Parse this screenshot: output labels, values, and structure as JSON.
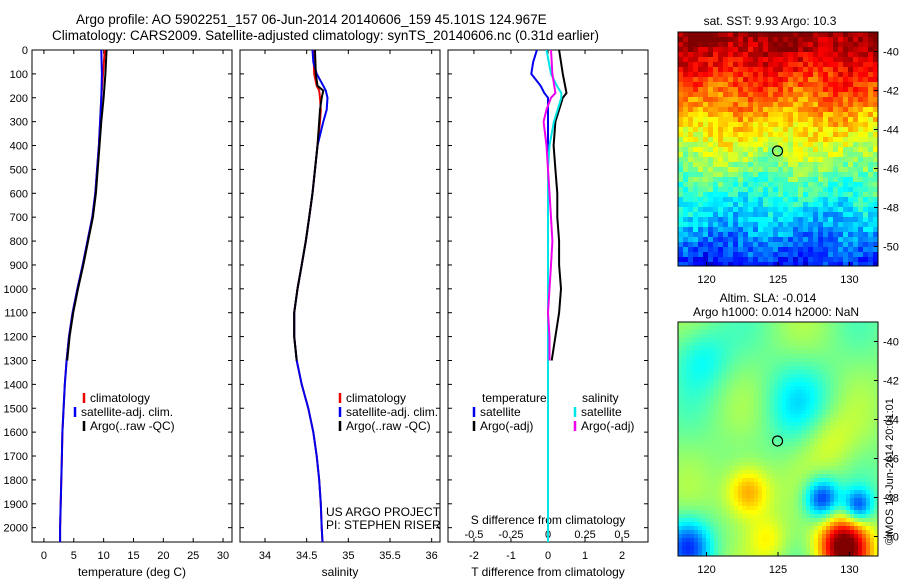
{
  "header": {
    "line1": "Argo profile: AO 5902251_157 06-Jun-2014 20140606_159 45.101S 124.967E",
    "line2": "Climatology: CARS2009. Satellite-adjusted climatology: synTS_20140606.nc (0.31d earlier)"
  },
  "colors": {
    "climatology": "#ee0000",
    "satellite": "#0000ee",
    "argo": "#000000",
    "sat_salinity": "#00e5e5",
    "argo_salinity": "#ee00ee"
  },
  "chart_data": [
    {
      "type": "line",
      "id": "temperature",
      "xlabel": "temperature (deg C)",
      "ylabel": "",
      "xlim": [
        -2,
        31.5
      ],
      "ylim": [
        2060,
        0
      ],
      "xticks": [
        0,
        5,
        10,
        15,
        20,
        25,
        30
      ],
      "yticks": [
        0,
        100,
        200,
        300,
        400,
        500,
        600,
        700,
        800,
        900,
        1000,
        1100,
        1200,
        1300,
        1400,
        1500,
        1600,
        1700,
        1800,
        1900,
        2000
      ],
      "legend": [
        "climatology",
        "satellite-adj. clim.",
        "Argo(..raw -QC)"
      ],
      "series": [
        {
          "name": "climatology",
          "depth": [
            0,
            100,
            200,
            300,
            400,
            500,
            600,
            700,
            800,
            900,
            1000,
            1100,
            1200,
            1300,
            1400,
            1500,
            1600,
            1700,
            1800,
            1900,
            2000,
            2060
          ],
          "values": [
            10.2,
            9.9,
            9.6,
            9.4,
            9.2,
            8.9,
            8.6,
            8.1,
            7.3,
            6.5,
            5.6,
            4.8,
            4.2,
            3.8,
            3.5,
            3.3,
            3.1,
            3.0,
            2.9,
            2.8,
            2.7,
            2.7
          ]
        },
        {
          "name": "satellite",
          "depth": [
            0,
            100,
            200,
            300,
            400,
            500,
            600,
            700,
            800,
            900,
            1000,
            1100,
            1200,
            1300,
            1400,
            1500,
            1600,
            1700,
            1800,
            1900,
            2000,
            2060
          ],
          "values": [
            9.6,
            9.7,
            9.6,
            9.4,
            9.2,
            8.9,
            8.6,
            8.1,
            7.3,
            6.5,
            5.6,
            4.8,
            4.2,
            3.8,
            3.5,
            3.3,
            3.1,
            3.0,
            2.9,
            2.8,
            2.7,
            2.7
          ]
        },
        {
          "name": "argo",
          "depth": [
            0,
            100,
            200,
            300,
            400,
            500,
            600,
            700,
            800,
            900,
            1000,
            1100,
            1200,
            1300
          ],
          "values": [
            10.5,
            10.3,
            10.0,
            9.6,
            9.3,
            9.0,
            8.7,
            8.2,
            7.4,
            6.6,
            5.7,
            4.9,
            4.3,
            3.9
          ]
        }
      ]
    },
    {
      "type": "line",
      "id": "salinity",
      "xlabel": "salinity",
      "xlim": [
        33.7,
        36.1
      ],
      "ylim": [
        2060,
        0
      ],
      "xticks": [
        34,
        34.5,
        35,
        35.5,
        36
      ],
      "legend": [
        "climatology",
        "satellite-adj. clim.",
        "Argo(..raw -QC)"
      ],
      "annotation": [
        "US ARGO PROJECT",
        "PI: STEPHEN RISER"
      ],
      "series": [
        {
          "name": "climatology",
          "depth": [
            0,
            100,
            150,
            170,
            200,
            250,
            300,
            400,
            500,
            600,
            700,
            800,
            900,
            1000,
            1100,
            1200,
            1300,
            1400,
            1500,
            1600,
            1700,
            1800,
            1900,
            2000,
            2060
          ],
          "values": [
            34.58,
            34.59,
            34.62,
            34.65,
            34.66,
            34.67,
            34.66,
            34.63,
            34.6,
            34.57,
            34.53,
            34.49,
            34.44,
            34.39,
            34.35,
            34.35,
            34.38,
            34.44,
            34.52,
            34.58,
            34.62,
            34.65,
            34.67,
            34.68,
            34.69
          ]
        },
        {
          "name": "satellite",
          "depth": [
            0,
            50,
            100,
            150,
            170,
            200,
            250,
            300,
            400,
            500,
            600,
            700,
            800,
            900,
            1000,
            1100,
            1200,
            1300,
            1400,
            1500,
            1600,
            1700,
            1800,
            1900,
            2000,
            2060
          ],
          "values": [
            34.57,
            34.58,
            34.62,
            34.7,
            34.73,
            34.75,
            34.74,
            34.7,
            34.63,
            34.6,
            34.57,
            34.53,
            34.49,
            34.44,
            34.39,
            34.35,
            34.35,
            34.38,
            34.44,
            34.52,
            34.58,
            34.62,
            34.65,
            34.67,
            34.68,
            34.69
          ]
        },
        {
          "name": "argo",
          "depth": [
            0,
            100,
            150,
            170,
            200,
            250,
            300,
            400,
            500,
            600,
            700,
            800,
            900,
            1000,
            1100,
            1200,
            1300
          ],
          "values": [
            34.6,
            34.61,
            34.63,
            34.7,
            34.68,
            34.66,
            34.65,
            34.63,
            34.6,
            34.57,
            34.53,
            34.49,
            34.44,
            34.39,
            34.35,
            34.35,
            34.38
          ]
        }
      ]
    },
    {
      "type": "line",
      "id": "difference",
      "xlabel": "T difference from climatology",
      "xlabel_top": "S difference from climatology",
      "xlim": [
        -2.7,
        2.7
      ],
      "xlim_salinity": [
        -0.675,
        0.675
      ],
      "ylim": [
        2060,
        0
      ],
      "xticks": [
        -2,
        -1,
        0,
        1,
        2
      ],
      "xticks_top": [
        -0.5,
        -0.25,
        0,
        0.25,
        0.5
      ],
      "legend_t": [
        "temperature",
        "satellite",
        "Argo(-adj)"
      ],
      "legend_s": [
        "salinity",
        "satellite",
        "Argo(-adj)"
      ],
      "series": [
        {
          "name": "T satellite",
          "depth": [
            0,
            50,
            100,
            150,
            180,
            200,
            300,
            400,
            500,
            1000,
            1500,
            2060
          ],
          "values": [
            -0.3,
            -0.4,
            -0.45,
            -0.2,
            -0.1,
            0,
            0,
            0,
            0,
            0,
            0,
            0
          ]
        },
        {
          "name": "T argo",
          "depth": [
            0,
            100,
            180,
            200,
            300,
            400,
            500,
            600,
            700,
            800,
            900,
            1000,
            1100,
            1200,
            1300
          ],
          "values": [
            0.3,
            0.4,
            0.5,
            0.4,
            0.2,
            0.15,
            0.2,
            0.25,
            0.25,
            0.3,
            0.3,
            0.35,
            0.3,
            0.2,
            0.1
          ]
        },
        {
          "name": "S satellite",
          "depth": [
            0,
            100,
            150,
            180,
            200,
            300,
            400,
            500,
            1000,
            1500,
            2060
          ],
          "values": [
            -0.01,
            0.02,
            0.06,
            0.09,
            0.09,
            0.04,
            0.01,
            0,
            0,
            0,
            0
          ]
        },
        {
          "name": "S argo",
          "depth": [
            0,
            100,
            180,
            200,
            250,
            300,
            400,
            500,
            600,
            700,
            800,
            900,
            1000,
            1100,
            1200,
            1300
          ],
          "values": [
            0.02,
            0.03,
            0.05,
            0.02,
            -0.01,
            -0.03,
            -0.01,
            0,
            0.01,
            0.02,
            0.03,
            0.02,
            0.01,
            0,
            0.01,
            0.01
          ]
        }
      ]
    },
    {
      "type": "heatmap",
      "id": "sst_map",
      "title": "sat. SST: 9.93 Argo: 10.3",
      "xlim": [
        118,
        132
      ],
      "ylim": [
        -51,
        -39
      ],
      "xticks": [
        120,
        125,
        130
      ],
      "yticks": [
        -40,
        -42,
        -44,
        -46,
        -48,
        -50
      ],
      "marker": {
        "lon": 124.967,
        "lat": -45.101
      }
    },
    {
      "type": "heatmap",
      "id": "sla_map",
      "title_lines": [
        "Altim. SLA: -0.014",
        "Argo h1000: 0.014 h2000: NaN"
      ],
      "xlim": [
        118,
        132
      ],
      "ylim": [
        -51,
        -39
      ],
      "xticks": [
        120,
        125,
        130
      ],
      "yticks": [
        -40,
        -42,
        -44,
        -46,
        -48,
        -50
      ],
      "marker": {
        "lon": 124.967,
        "lat": -45.101
      },
      "credit": "©IMOS 13-Jun-2014 20:01:01"
    }
  ]
}
